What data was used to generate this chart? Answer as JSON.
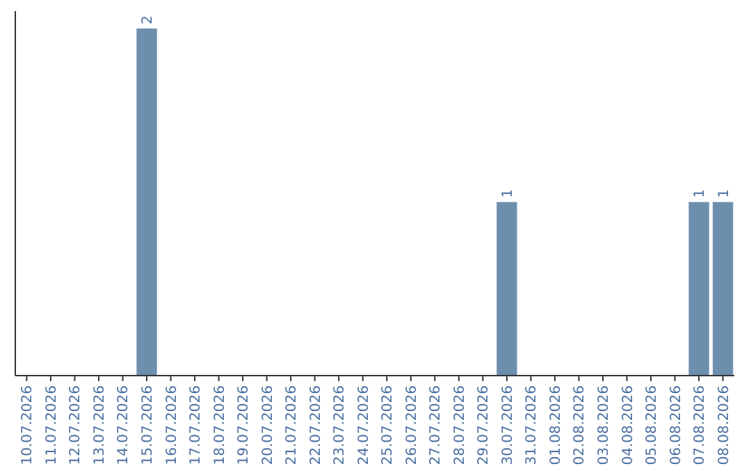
{
  "chart_data": {
    "type": "bar",
    "categories": [
      "10.07.2026",
      "11.07.2026",
      "12.07.2026",
      "13.07.2026",
      "14.07.2026",
      "15.07.2026",
      "16.07.2026",
      "17.07.2026",
      "18.07.2026",
      "19.07.2026",
      "20.07.2026",
      "21.07.2026",
      "22.07.2026",
      "23.07.2026",
      "24.07.2026",
      "25.07.2026",
      "26.07.2026",
      "27.07.2026",
      "28.07.2026",
      "29.07.2026",
      "30.07.2026",
      "31.07.2026",
      "01.08.2026",
      "02.08.2026",
      "03.08.2026",
      "04.08.2026",
      "05.08.2026",
      "06.08.2026",
      "07.08.2026",
      "08.08.2026"
    ],
    "values": [
      0,
      0,
      0,
      0,
      0,
      2,
      0,
      0,
      0,
      0,
      0,
      0,
      0,
      0,
      0,
      0,
      0,
      0,
      0,
      0,
      1,
      0,
      0,
      0,
      0,
      0,
      0,
      0,
      1,
      1
    ],
    "value_labels": [
      null,
      null,
      null,
      null,
      null,
      "2",
      null,
      null,
      null,
      null,
      null,
      null,
      null,
      null,
      null,
      null,
      null,
      null,
      null,
      null,
      "1",
      null,
      null,
      null,
      null,
      null,
      null,
      null,
      "1",
      "1"
    ],
    "color": "#6d8fae",
    "ylim": [
      0,
      2.1
    ],
    "tick_labels": "x"
  }
}
